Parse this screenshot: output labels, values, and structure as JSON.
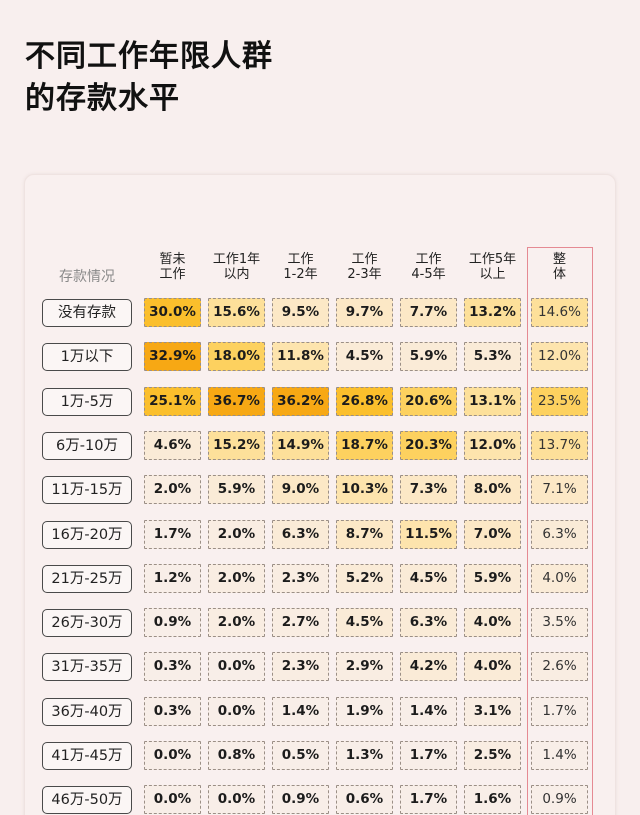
{
  "title": {
    "line1": "不同工作年限人群",
    "line2": "的存款水平"
  },
  "table": {
    "corner_label": "存款情况",
    "columns": [
      {
        "line1": "暂未",
        "line2": "工作"
      },
      {
        "line1": "工作1年",
        "line2": "以内"
      },
      {
        "line1": "工作",
        "line2": "1-2年"
      },
      {
        "line1": "工作",
        "line2": "2-3年"
      },
      {
        "line1": "工作",
        "line2": "4-5年"
      },
      {
        "line1": "工作5年",
        "line2": "以上"
      },
      {
        "line1": "整",
        "line2": "体"
      }
    ],
    "highlight_color": "#e58a93",
    "rows": [
      {
        "label": "没有存款",
        "values": [
          "30.0%",
          "15.6%",
          "9.5%",
          "9.7%",
          "7.7%",
          "13.2%",
          "14.6%"
        ]
      },
      {
        "label": "1万以下",
        "values": [
          "32.9%",
          "18.0%",
          "11.8%",
          "4.5%",
          "5.9%",
          "5.3%",
          "12.0%"
        ]
      },
      {
        "label": "1万-5万",
        "values": [
          "25.1%",
          "36.7%",
          "36.2%",
          "26.8%",
          "20.6%",
          "13.1%",
          "23.5%"
        ]
      },
      {
        "label": "6万-10万",
        "values": [
          "4.6%",
          "15.2%",
          "14.9%",
          "18.7%",
          "20.3%",
          "12.0%",
          "13.7%"
        ]
      },
      {
        "label": "11万-15万",
        "values": [
          "2.0%",
          "5.9%",
          "9.0%",
          "10.3%",
          "7.3%",
          "8.0%",
          "7.1%"
        ]
      },
      {
        "label": "16万-20万",
        "values": [
          "1.7%",
          "2.0%",
          "6.3%",
          "8.7%",
          "11.5%",
          "7.0%",
          "6.3%"
        ]
      },
      {
        "label": "21万-25万",
        "values": [
          "1.2%",
          "2.0%",
          "2.3%",
          "5.2%",
          "4.5%",
          "5.9%",
          "4.0%"
        ]
      },
      {
        "label": "26万-30万",
        "values": [
          "0.9%",
          "2.0%",
          "2.7%",
          "4.5%",
          "6.3%",
          "4.0%",
          "3.5%"
        ]
      },
      {
        "label": "31万-35万",
        "values": [
          "0.3%",
          "0.0%",
          "2.3%",
          "2.9%",
          "4.2%",
          "4.0%",
          "2.6%"
        ]
      },
      {
        "label": "36万-40万",
        "values": [
          "0.3%",
          "0.0%",
          "1.4%",
          "1.9%",
          "1.4%",
          "3.1%",
          "1.7%"
        ]
      },
      {
        "label": "41万-45万",
        "values": [
          "0.0%",
          "0.8%",
          "0.5%",
          "1.3%",
          "1.7%",
          "2.5%",
          "1.4%"
        ]
      },
      {
        "label": "46万-50万",
        "values": [
          "0.0%",
          "0.0%",
          "0.9%",
          "0.6%",
          "1.7%",
          "1.6%",
          "0.9%"
        ]
      }
    ]
  },
  "chart_data": {
    "type": "heatmap",
    "title": "不同工作年限人群的存款水平",
    "xlabel": "",
    "ylabel": "存款情况",
    "x": [
      "暂未工作",
      "工作1年以内",
      "工作1-2年",
      "工作2-3年",
      "工作4-5年",
      "工作5年以上",
      "整体"
    ],
    "y": [
      "没有存款",
      "1万以下",
      "1万-5万",
      "6万-10万",
      "11万-15万",
      "16万-20万",
      "21万-25万",
      "26万-30万",
      "31万-35万",
      "36万-40万",
      "41万-45万",
      "46万-50万"
    ],
    "values": [
      [
        30.0,
        15.6,
        9.5,
        9.7,
        7.7,
        13.2,
        14.6
      ],
      [
        32.9,
        18.0,
        11.8,
        4.5,
        5.9,
        5.3,
        12.0
      ],
      [
        25.1,
        36.7,
        36.2,
        26.8,
        20.6,
        13.1,
        23.5
      ],
      [
        4.6,
        15.2,
        14.9,
        18.7,
        20.3,
        12.0,
        13.7
      ],
      [
        2.0,
        5.9,
        9.0,
        10.3,
        7.3,
        8.0,
        7.1
      ],
      [
        1.7,
        2.0,
        6.3,
        8.7,
        11.5,
        7.0,
        6.3
      ],
      [
        1.2,
        2.0,
        2.3,
        5.2,
        4.5,
        5.9,
        4.0
      ],
      [
        0.9,
        2.0,
        2.7,
        4.5,
        6.3,
        4.0,
        3.5
      ],
      [
        0.3,
        0.0,
        2.3,
        2.9,
        4.2,
        4.0,
        2.6
      ],
      [
        0.3,
        0.0,
        1.4,
        1.9,
        1.4,
        3.1,
        1.7
      ],
      [
        0.0,
        0.8,
        0.5,
        1.3,
        1.7,
        2.5,
        1.4
      ],
      [
        0.0,
        0.0,
        0.9,
        0.6,
        1.7,
        1.6,
        0.9
      ]
    ],
    "unit": "%",
    "color_scale": [
      "#f9ece4",
      "#fbe4c2",
      "#fbd88f",
      "#fcc84a",
      "#f9b21d",
      "#f7a612"
    ],
    "highlighted_column": "整体"
  }
}
